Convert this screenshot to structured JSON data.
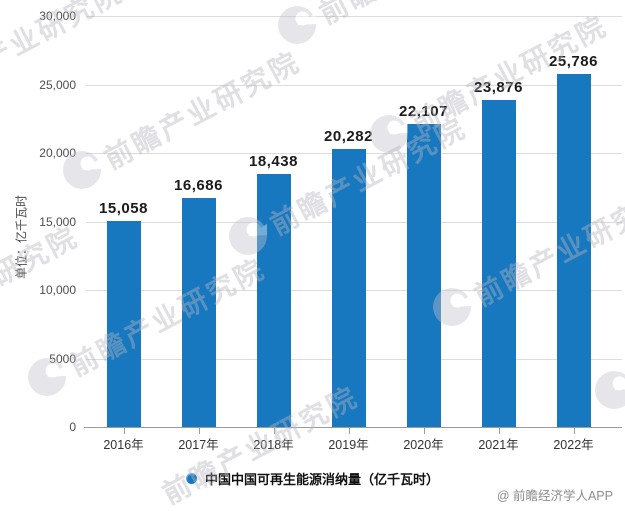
{
  "chart_data": {
    "type": "bar",
    "categories": [
      "2016年",
      "2017年",
      "2018年",
      "2019年",
      "2020年",
      "2021年",
      "2022年"
    ],
    "values": [
      15058,
      16686,
      18438,
      20282,
      22107,
      23876,
      25786
    ],
    "value_labels": [
      "15,058",
      "16,686",
      "18,438",
      "20,282",
      "22,107",
      "23,876",
      "25,786"
    ],
    "series_name": "中国中国可再生能源消纳量（亿千瓦时）",
    "title": "",
    "xlabel": "",
    "ylabel": "单位：亿千瓦时",
    "ylim": [
      0,
      30000
    ],
    "yticks": [
      0,
      5000,
      10000,
      15000,
      20000,
      25000,
      30000
    ],
    "ytick_labels": [
      "0",
      "5000",
      "10,000",
      "15,000",
      "20,000",
      "25,000",
      "30,000"
    ],
    "grid": true,
    "legend_position": "bottom",
    "bar_color": "#1778bf"
  },
  "legend": {
    "label": "中国中国可再生能源消纳量（亿千瓦时）",
    "marker_color": "#1778bf"
  },
  "footer": {
    "credit": "@ 前瞻经济学人APP"
  },
  "watermark": {
    "text": "前瞻产业研究院",
    "logo": "qianzhan-circle-logo"
  }
}
